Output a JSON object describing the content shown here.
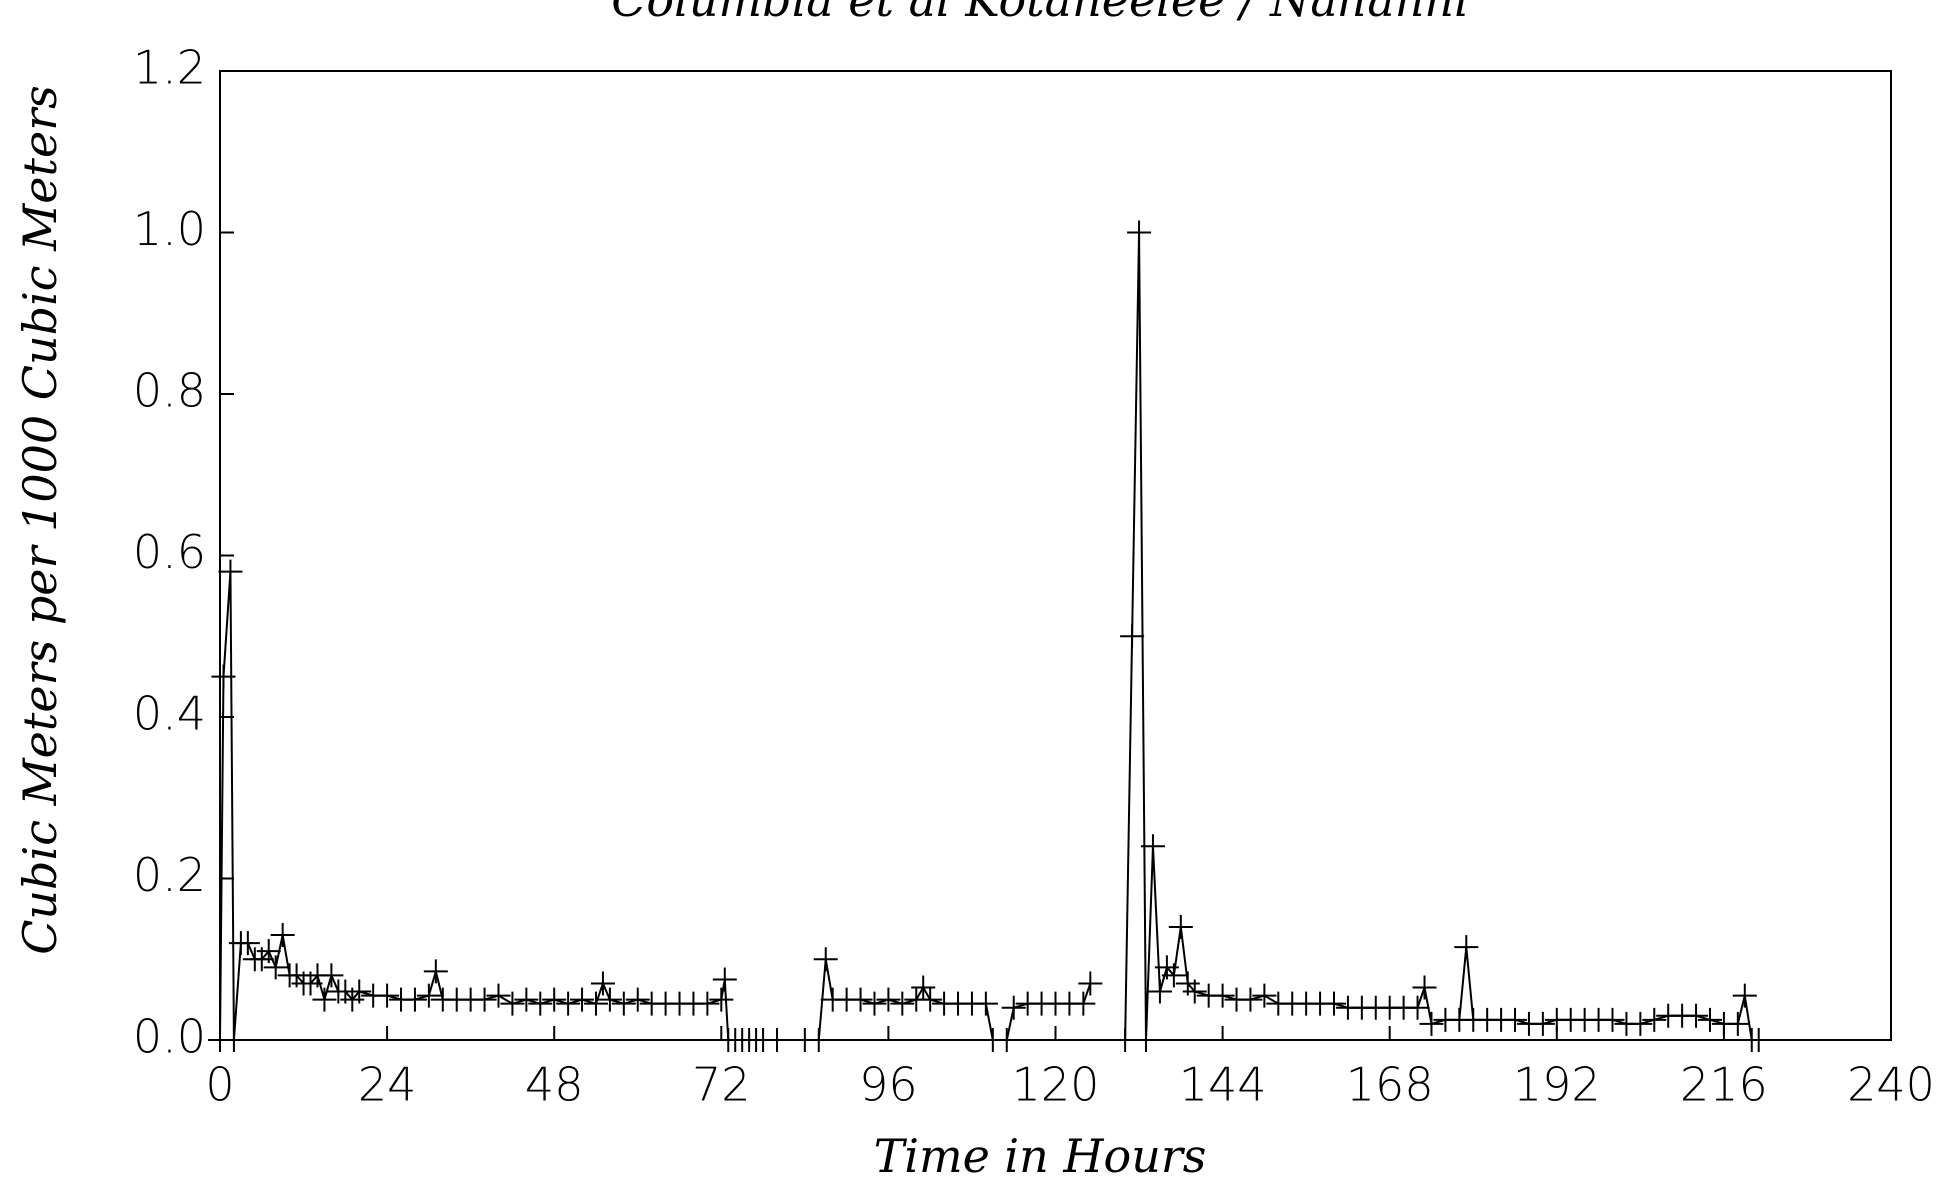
{
  "chart_data": {
    "type": "line",
    "title": "Columbia et al Kotaneelee / Nahanni",
    "x_label": "Time in Hours",
    "y_label": "Cubic Meters per 1000 Cubic Meters",
    "xlim": [
      0,
      240
    ],
    "ylim": [
      0,
      1.2
    ],
    "xticks": [
      0,
      24,
      48,
      72,
      96,
      120,
      144,
      168,
      192,
      216,
      240
    ],
    "yticks": [
      {
        "value": 0,
        "label": "0.0"
      },
      0.2,
      0.4,
      0.6,
      0.8,
      {
        "value": 1,
        "label": "1.0"
      },
      1.2
    ],
    "grid": false,
    "series": [
      {
        "color": "#000000",
        "marker": "+",
        "x": [
          0,
          0.5,
          1.5,
          2,
          3,
          4,
          5,
          6,
          7,
          8,
          9,
          10,
          11,
          12,
          13,
          14,
          15,
          16,
          17,
          18,
          19,
          20,
          22,
          24,
          26,
          28,
          30,
          31,
          32,
          34,
          36,
          38,
          40,
          42,
          44,
          46,
          48,
          50,
          52,
          54,
          55,
          56,
          58,
          60,
          62,
          64,
          66,
          68,
          70,
          72,
          72.5,
          73,
          74,
          75,
          76,
          77,
          78,
          80,
          82,
          84,
          86,
          87,
          88,
          90,
          92,
          94,
          96,
          98,
          100,
          101,
          102,
          104,
          106,
          108,
          110,
          111,
          112,
          113,
          114,
          116,
          118,
          120,
          122,
          124,
          125,
          128,
          130,
          131,
          132,
          133,
          134,
          135,
          136,
          137,
          138,
          139,
          140,
          142,
          144,
          146,
          148,
          150,
          152,
          154,
          156,
          158,
          160,
          162,
          164,
          166,
          168,
          170,
          172,
          173,
          174,
          176,
          178,
          179,
          180,
          182,
          184,
          186,
          188,
          190,
          192,
          194,
          196,
          198,
          200,
          202,
          204,
          206,
          208,
          210,
          212,
          214,
          216,
          218,
          219,
          220,
          221
        ],
        "values": [
          0,
          0.45,
          0.58,
          0,
          0.12,
          0.12,
          0.1,
          0.1,
          0.11,
          0.09,
          0.13,
          0.08,
          0.08,
          0.07,
          0.07,
          0.08,
          0.05,
          0.08,
          0.06,
          0.06,
          0.05,
          0.06,
          0.055,
          0.055,
          0.05,
          0.05,
          0.055,
          0.085,
          0.05,
          0.05,
          0.05,
          0.05,
          0.055,
          0.045,
          0.05,
          0.045,
          0.05,
          0.045,
          0.05,
          0.045,
          0.07,
          0.05,
          0.045,
          0.05,
          0.045,
          0.045,
          0.045,
          0.045,
          0.045,
          0.05,
          0.075,
          0,
          0,
          0,
          0,
          0,
          0,
          0,
          null,
          0,
          0,
          0.1,
          0.05,
          0.05,
          0.05,
          0.045,
          0.05,
          0.045,
          0.05,
          0.065,
          0.05,
          0.045,
          0.045,
          0.045,
          0.045,
          0,
          null,
          0,
          0.04,
          0.045,
          0.045,
          0.045,
          0.045,
          0.045,
          0.07,
          null,
          0,
          0.5,
          1.0,
          0,
          0.24,
          0.06,
          0.09,
          0.08,
          0.14,
          0.07,
          0.06,
          0.055,
          0.055,
          0.05,
          0.05,
          0.055,
          0.045,
          0.045,
          0.045,
          0.045,
          0.045,
          0.04,
          0.04,
          0.04,
          0.04,
          0.04,
          0.04,
          0.065,
          0.02,
          0.025,
          0.025,
          0.115,
          0.025,
          0.025,
          0.025,
          0.025,
          0.02,
          0.02,
          0.025,
          0.025,
          0.025,
          0.025,
          0.025,
          0.02,
          0.02,
          0.025,
          0.03,
          0.03,
          0.03,
          0.025,
          0.02,
          0.02,
          0.055,
          0,
          0
        ]
      }
    ]
  }
}
